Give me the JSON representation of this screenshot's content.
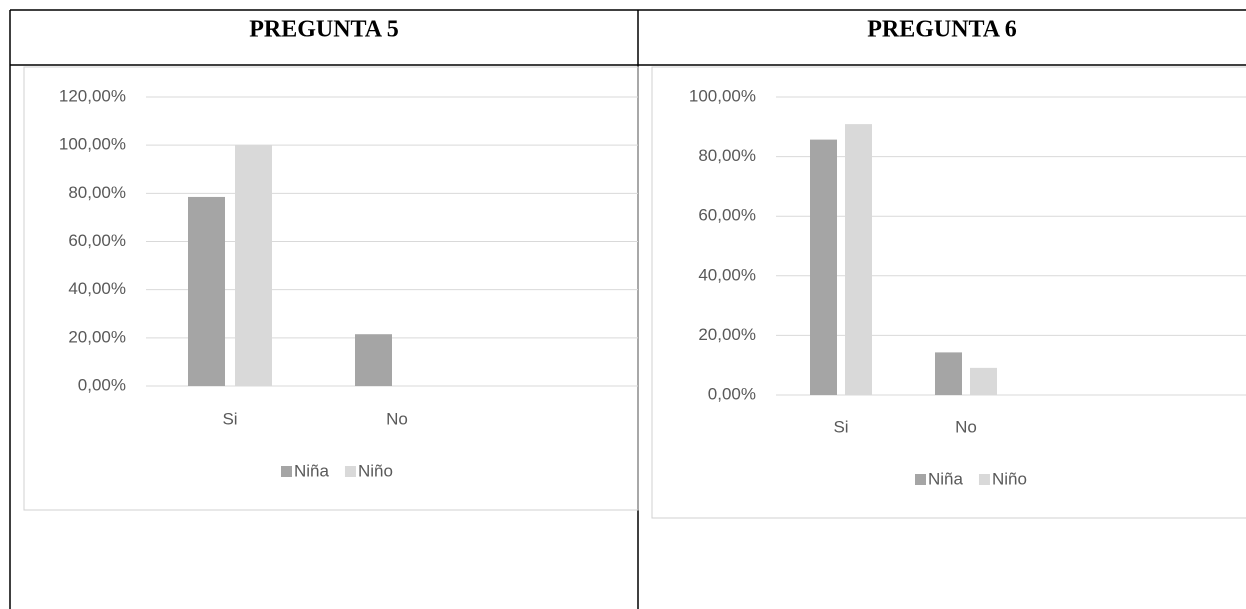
{
  "chart_data": [
    {
      "type": "bar",
      "title": "PREGUNTA 5",
      "categories": [
        "Si",
        "No"
      ],
      "series": [
        {
          "name": "Niña",
          "color": "#a5a5a5",
          "values": [
            78.5,
            21.5
          ]
        },
        {
          "name": "Niño",
          "color": "#d9d9d9",
          "values": [
            100,
            0
          ]
        }
      ],
      "ylim": [
        0,
        120
      ],
      "yticks": [
        {
          "value": 0,
          "label": "0,00%"
        },
        {
          "value": 20,
          "label": "20,00%"
        },
        {
          "value": 40,
          "label": "40,00%"
        },
        {
          "value": 60,
          "label": "60,00%"
        },
        {
          "value": 80,
          "label": "80,00%"
        },
        {
          "value": 100,
          "label": "100,00%"
        },
        {
          "value": 120,
          "label": "120,00%"
        }
      ],
      "grid": true,
      "legend": "bottom"
    },
    {
      "type": "bar",
      "title": "PREGUNTA 6",
      "categories": [
        "Si",
        "No"
      ],
      "series": [
        {
          "name": "Niña",
          "color": "#a5a5a5",
          "values": [
            85.7,
            14.3
          ]
        },
        {
          "name": "Niño",
          "color": "#d9d9d9",
          "values": [
            90.9,
            9.1
          ]
        }
      ],
      "ylim": [
        0,
        100
      ],
      "yticks": [
        {
          "value": 0,
          "label": "0,00%"
        },
        {
          "value": 20,
          "label": "20,00%"
        },
        {
          "value": 40,
          "label": "40,00%"
        },
        {
          "value": 60,
          "label": "60,00%"
        },
        {
          "value": 80,
          "label": "80,00%"
        },
        {
          "value": 100,
          "label": "100,00%"
        }
      ],
      "grid": true,
      "legend": "bottom"
    }
  ]
}
